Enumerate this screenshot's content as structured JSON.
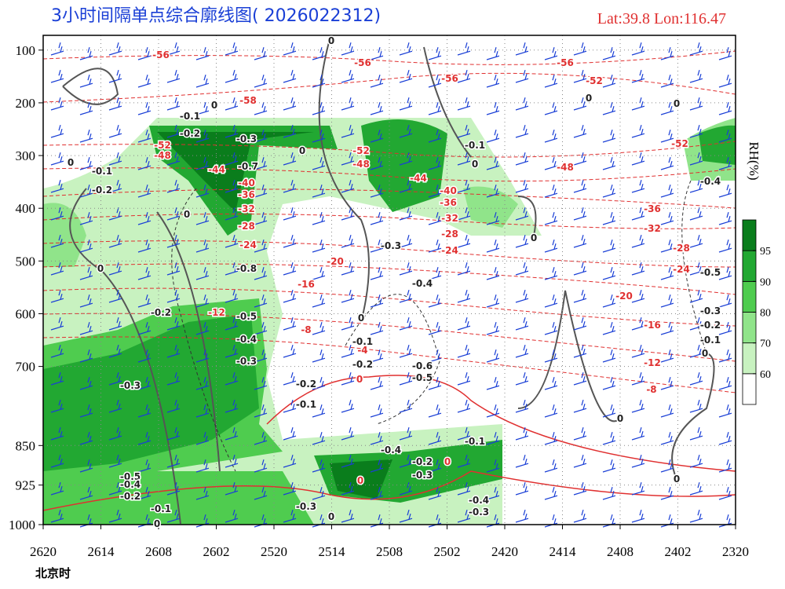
{
  "chart_data": {
    "type": "cross-section",
    "title": "3小时间隔单点综合廓线图( 2026022312)",
    "location": "Lat:39.8  Lon:116.47",
    "x_label": "北京时",
    "colorbar_label": "RH(%)",
    "categories": [
      "2620",
      "2614",
      "2608",
      "2602",
      "2520",
      "2514",
      "2508",
      "2502",
      "2420",
      "2414",
      "2408",
      "2402",
      "2320"
    ],
    "ylim": [
      1000,
      72
    ],
    "yticks": [
      100,
      200,
      300,
      400,
      500,
      600,
      700,
      850,
      925,
      1000
    ],
    "grid": true,
    "colorbar": {
      "ticks": [
        60,
        70,
        80,
        90,
        95
      ],
      "colors": [
        "#ffffff",
        "#c8f2c0",
        "#90e48a",
        "#4fcc4f",
        "#22a832",
        "#0a7d1c"
      ]
    },
    "temperature_labels": [
      "-56",
      "-56",
      "-56",
      "-56",
      "-52",
      "-58",
      "-52",
      "-48",
      "-52",
      "-48",
      "-44",
      "-44",
      "-40",
      "-36",
      "-32",
      "-28",
      "-24",
      "-48",
      "-52",
      "-40",
      "-36",
      "-32",
      "-28",
      "-24",
      "-20",
      "-16",
      "-12",
      "-8",
      "-4",
      "0",
      "-36",
      "-32",
      "-28",
      "-24",
      "-20",
      "-16",
      "-12",
      "-8",
      "0",
      "0"
    ],
    "vertical_velocity_labels": [
      "-0.1",
      "-0.2",
      "-0.3",
      "-0.7",
      "-0.8",
      "-0.1",
      "-0.2",
      "-0.5",
      "-0.4",
      "-0.3",
      "-0.3",
      "-0.2",
      "-0.3",
      "-0.4",
      "-0.1",
      "-0.2",
      "-0.6",
      "-0.5",
      "-0.2",
      "-0.1",
      "-0.4",
      "-0.2",
      "-0.3",
      "-0.1",
      "-0.1",
      "-0.4",
      "-0.5",
      "-0.3",
      "-0.2",
      "-0.1",
      "-0.5",
      "-0.4",
      "-0.2",
      "-0.1",
      "-0.3",
      "-0.4",
      "-0.3",
      "0",
      "0",
      "0",
      "0",
      "0",
      "0",
      "0",
      "0",
      "0",
      "0",
      "0",
      "0",
      "0",
      "0",
      "0",
      "0"
    ]
  }
}
